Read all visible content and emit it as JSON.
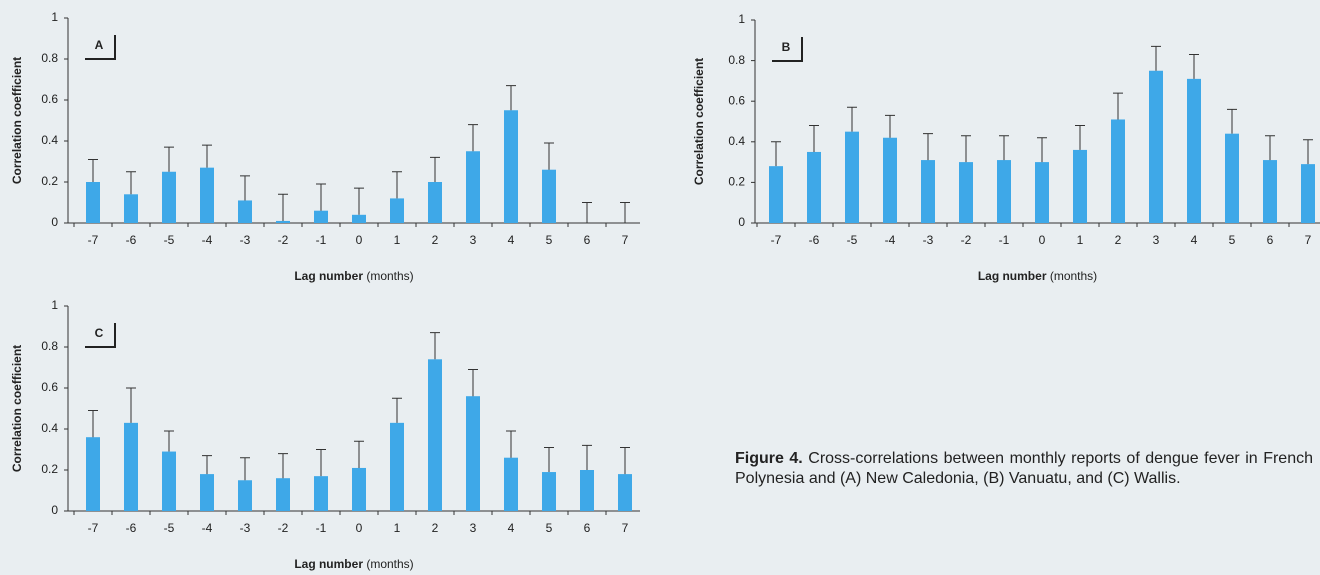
{
  "chart_data": [
    {
      "type": "bar",
      "panel_label": "A",
      "ylabel": "Correlation coefficient",
      "xlabel": "Lag number",
      "xlabel_unit": "(months)",
      "categories": [
        "-7",
        "-6",
        "-5",
        "-4",
        "-3",
        "-2",
        "-1",
        "0",
        "1",
        "2",
        "3",
        "4",
        "5",
        "6",
        "7"
      ],
      "values": [
        0.2,
        0.14,
        0.25,
        0.27,
        0.11,
        0.01,
        0.06,
        0.04,
        0.12,
        0.2,
        0.35,
        0.55,
        0.26,
        0,
        0
      ],
      "errors": [
        0.11,
        0.11,
        0.12,
        0.11,
        0.12,
        0.13,
        0.13,
        0.13,
        0.13,
        0.12,
        0.13,
        0.12,
        0.13,
        0.1,
        0.1
      ],
      "color": "#3ea8e8",
      "ylim": [
        0,
        1
      ],
      "yticks": [
        0,
        0.2,
        0.4,
        0.6,
        0.8,
        1
      ]
    },
    {
      "type": "bar",
      "panel_label": "B",
      "ylabel": "Correlation coefficient",
      "xlabel": "Lag number",
      "xlabel_unit": "(months)",
      "categories": [
        "-7",
        "-6",
        "-5",
        "-4",
        "-3",
        "-2",
        "-1",
        "0",
        "1",
        "2",
        "3",
        "4",
        "5",
        "6",
        "7"
      ],
      "values": [
        0.28,
        0.35,
        0.45,
        0.42,
        0.31,
        0.3,
        0.31,
        0.3,
        0.36,
        0.51,
        0.75,
        0.71,
        0.44,
        0.31,
        0.29
      ],
      "errors": [
        0.12,
        0.13,
        0.12,
        0.11,
        0.13,
        0.13,
        0.12,
        0.12,
        0.12,
        0.13,
        0.12,
        0.12,
        0.12,
        0.12,
        0.12
      ],
      "color": "#3ea8e8",
      "ylim": [
        0,
        1
      ],
      "yticks": [
        0,
        0.2,
        0.4,
        0.6,
        0.8,
        1
      ]
    },
    {
      "type": "bar",
      "panel_label": "C",
      "ylabel": "Correlation coefficient",
      "xlabel": "Lag number",
      "xlabel_unit": "(months)",
      "categories": [
        "-7",
        "-6",
        "-5",
        "-4",
        "-3",
        "-2",
        "-1",
        "0",
        "1",
        "2",
        "3",
        "4",
        "5",
        "6",
        "7"
      ],
      "values": [
        0.36,
        0.43,
        0.29,
        0.18,
        0.15,
        0.16,
        0.17,
        0.21,
        0.43,
        0.74,
        0.56,
        0.26,
        0.19,
        0.2,
        0.18
      ],
      "errors": [
        0.13,
        0.17,
        0.1,
        0.09,
        0.11,
        0.12,
        0.13,
        0.13,
        0.12,
        0.13,
        0.13,
        0.13,
        0.12,
        0.12,
        0.13
      ],
      "color": "#3ea8e8",
      "ylim": [
        0,
        1
      ],
      "yticks": [
        0,
        0.2,
        0.4,
        0.6,
        0.8,
        1
      ]
    }
  ],
  "caption": {
    "label": "Figure 4.",
    "text": "Cross-correlations between monthly reports of dengue fever in French Polynesia and (A) New Caledonia, (B) Vanuatu, and (C) Wallis."
  }
}
